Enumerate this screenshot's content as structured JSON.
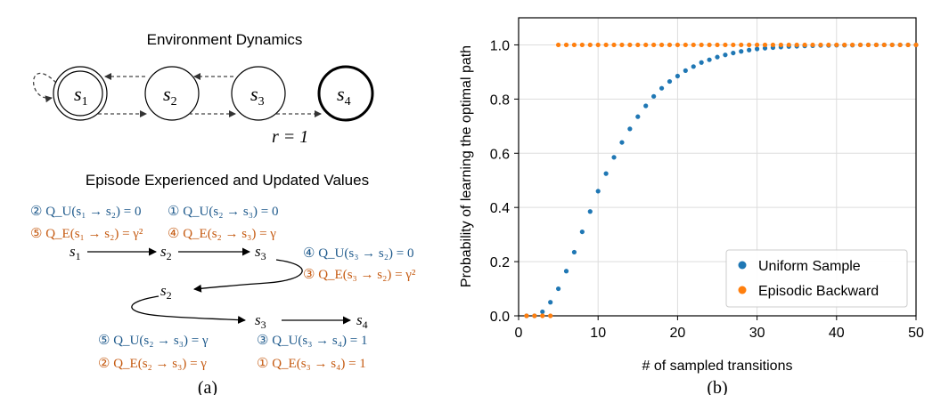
{
  "panel_a": {
    "title_dynamics": "Environment Dynamics",
    "states": [
      {
        "base": "s",
        "sub": "1"
      },
      {
        "base": "s",
        "sub": "2"
      },
      {
        "base": "s",
        "sub": "3"
      },
      {
        "base": "s",
        "sub": "4"
      }
    ],
    "reward_label": "r = 1",
    "title_episode": "Episode Experienced and Updated Values",
    "episode_states": [
      {
        "base": "s",
        "sub": "1"
      },
      {
        "base": "s",
        "sub": "2"
      },
      {
        "base": "s",
        "sub": "3"
      },
      {
        "base": "s",
        "sub": "2"
      },
      {
        "base": "s",
        "sub": "3"
      },
      {
        "base": "s",
        "sub": "4"
      }
    ],
    "updates": {
      "u1": "② Q_U(s₁ → s₂) = 0",
      "u2": "① Q_U(s₂ → s₃) = 0",
      "e1": "⑤ Q_E(s₁ → s₂) = γ²",
      "e2": "④ Q_E(s₂ → s₃) = γ",
      "u3": "④ Q_U(s₃ → s₂) = 0",
      "e3": "③ Q_E(s₃ → s₂) = γ²",
      "u4": "⑤ Q_U(s₂ → s₃) = γ",
      "u5": "③ Q_U(s₃ → s₄) = 1",
      "e4": "② Q_E(s₂ → s₃) = γ",
      "e5": "① Q_E(s₃ → s₄) = 1"
    },
    "caption": "(a)"
  },
  "panel_b": {
    "caption": "(b)",
    "legend_position": "lower-right"
  },
  "colors": {
    "uniform": "#1f77b4",
    "episodic": "#ff7f0e",
    "text_blue": "#1f5a8c",
    "text_orange": "#c55a11",
    "grid": "#dddddd"
  },
  "chart_data": {
    "type": "scatter",
    "xlabel": "# of sampled transitions",
    "ylabel": "Probability of learning the optimal path",
    "xlim": [
      0,
      50
    ],
    "ylim": [
      0,
      1.1
    ],
    "xticks": [
      0,
      10,
      20,
      30,
      40,
      50
    ],
    "yticks": [
      0.0,
      0.2,
      0.4,
      0.6,
      0.8,
      1.0
    ],
    "ytick_labels": [
      "0.0",
      "0.2",
      "0.4",
      "0.6",
      "0.8",
      "1.0"
    ],
    "grid": true,
    "series": [
      {
        "name": "Uniform Sample",
        "x": [
          1,
          2,
          3,
          4,
          5,
          6,
          7,
          8,
          9,
          10,
          11,
          12,
          13,
          14,
          15,
          16,
          17,
          18,
          19,
          20,
          21,
          22,
          23,
          24,
          25,
          26,
          27,
          28,
          29,
          30,
          31,
          32,
          33,
          34,
          35,
          36,
          37,
          38,
          39,
          40,
          41,
          42,
          43,
          44,
          45,
          46,
          47,
          48,
          49,
          50
        ],
        "y": [
          0.0,
          0.0,
          0.015,
          0.05,
          0.1,
          0.165,
          0.235,
          0.31,
          0.385,
          0.46,
          0.525,
          0.585,
          0.64,
          0.69,
          0.735,
          0.775,
          0.81,
          0.84,
          0.865,
          0.885,
          0.905,
          0.92,
          0.935,
          0.945,
          0.955,
          0.963,
          0.97,
          0.976,
          0.981,
          0.985,
          0.988,
          0.99,
          0.992,
          0.994,
          0.995,
          0.996,
          0.997,
          0.998,
          0.998,
          0.999,
          0.999,
          0.999,
          1.0,
          1.0,
          1.0,
          1.0,
          1.0,
          1.0,
          1.0,
          1.0
        ]
      },
      {
        "name": "Episodic Backward",
        "x": [
          1,
          2,
          3,
          4,
          5,
          6,
          7,
          8,
          9,
          10,
          11,
          12,
          13,
          14,
          15,
          16,
          17,
          18,
          19,
          20,
          21,
          22,
          23,
          24,
          25,
          26,
          27,
          28,
          29,
          30,
          31,
          32,
          33,
          34,
          35,
          36,
          37,
          38,
          39,
          40,
          41,
          42,
          43,
          44,
          45,
          46,
          47,
          48,
          49,
          50
        ],
        "y": [
          0.0,
          0.0,
          0.0,
          0.0,
          1.0,
          1.0,
          1.0,
          1.0,
          1.0,
          1.0,
          1.0,
          1.0,
          1.0,
          1.0,
          1.0,
          1.0,
          1.0,
          1.0,
          1.0,
          1.0,
          1.0,
          1.0,
          1.0,
          1.0,
          1.0,
          1.0,
          1.0,
          1.0,
          1.0,
          1.0,
          1.0,
          1.0,
          1.0,
          1.0,
          1.0,
          1.0,
          1.0,
          1.0,
          1.0,
          1.0,
          1.0,
          1.0,
          1.0,
          1.0,
          1.0,
          1.0,
          1.0,
          1.0,
          1.0,
          1.0
        ]
      }
    ]
  }
}
